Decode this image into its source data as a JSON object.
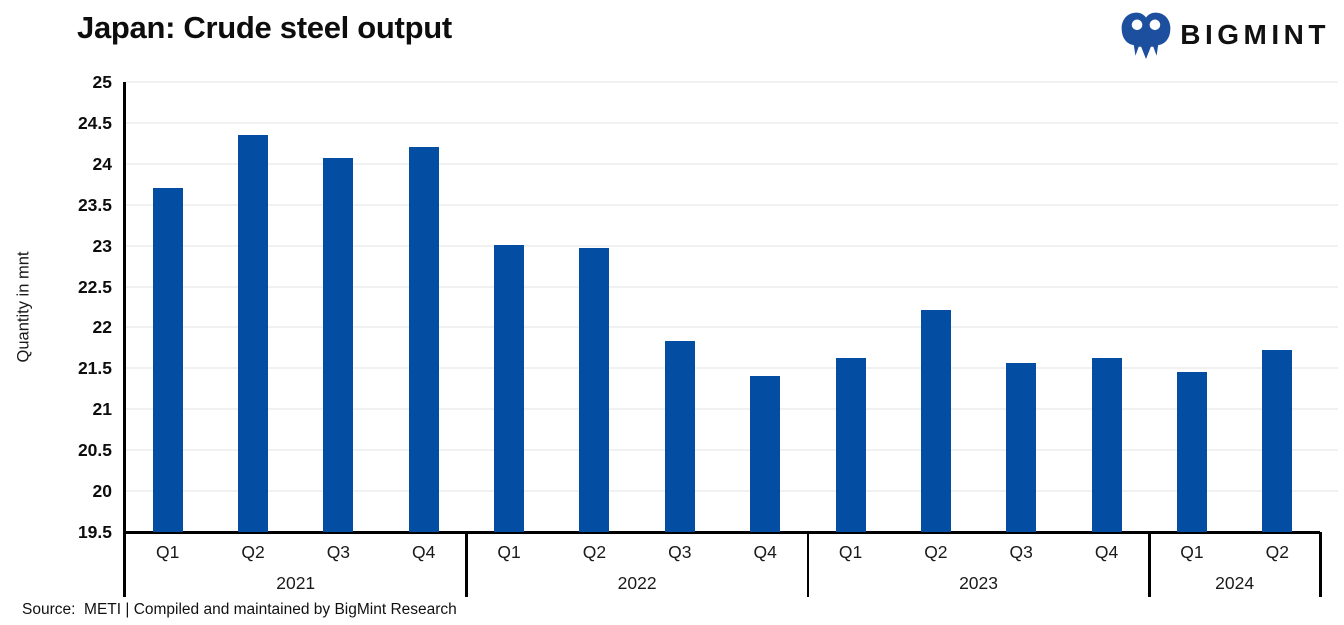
{
  "header": {
    "title": "Japan: Crude steel output",
    "logo_text": "BIGMINT",
    "logo_color": "#1d4f9f"
  },
  "chart_data": {
    "type": "bar",
    "title": "Japan: Crude steel output",
    "xlabel": "",
    "ylabel": "Quantity in mnt",
    "ylim": [
      19.5,
      25
    ],
    "yticks": [
      25,
      24.5,
      24,
      23.5,
      23,
      22.5,
      22,
      21.5,
      21,
      20.5,
      20,
      19.5
    ],
    "grid": true,
    "legend": false,
    "bar_color": "#034ea2",
    "gridline_color": "#f1f1f1",
    "groups": [
      {
        "year": "2021",
        "categories": [
          "Q1",
          "Q2",
          "Q3",
          "Q4"
        ],
        "values": [
          23.7,
          24.35,
          24.07,
          24.2
        ]
      },
      {
        "year": "2022",
        "categories": [
          "Q1",
          "Q2",
          "Q3",
          "Q4"
        ],
        "values": [
          23.01,
          22.97,
          21.83,
          21.41
        ]
      },
      {
        "year": "2023",
        "categories": [
          "Q1",
          "Q2",
          "Q3",
          "Q4"
        ],
        "values": [
          21.63,
          22.21,
          21.56,
          21.63
        ]
      },
      {
        "year": "2024",
        "categories": [
          "Q1",
          "Q2"
        ],
        "values": [
          21.45,
          21.72
        ]
      }
    ]
  },
  "footer": {
    "source": "Source:  METI | Compiled and maintained by BigMint Research"
  }
}
